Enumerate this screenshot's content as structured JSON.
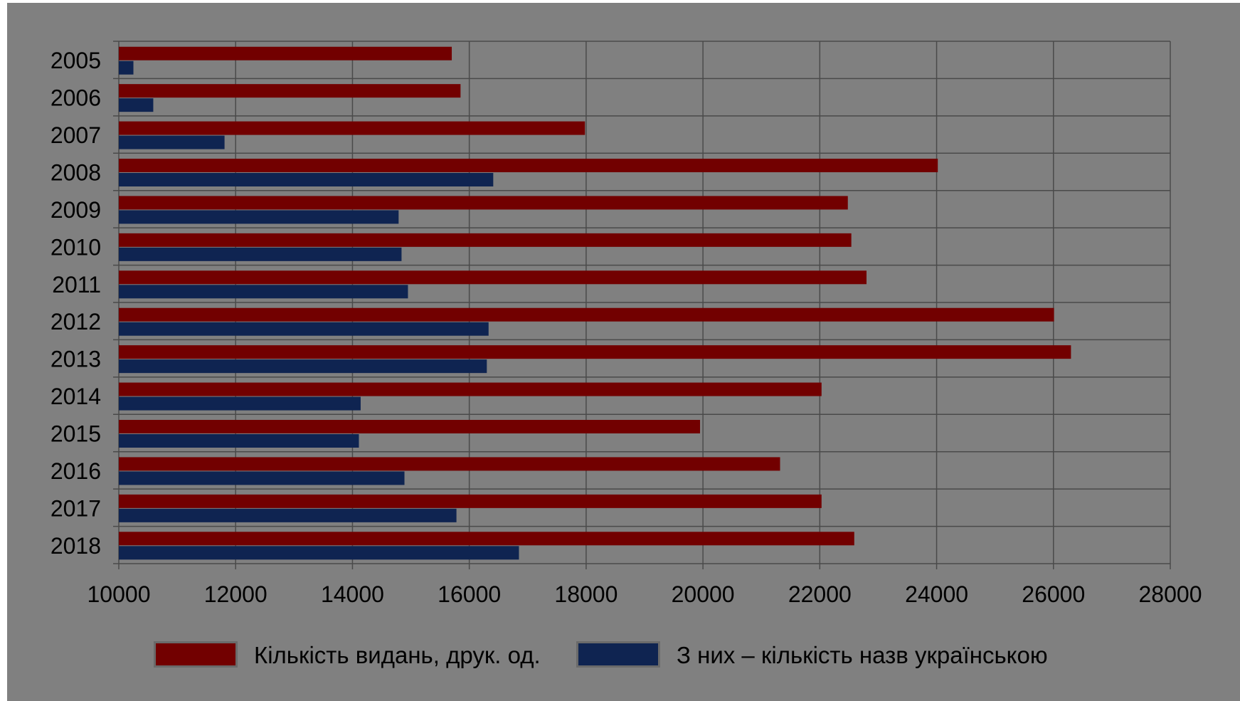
{
  "chart_data": {
    "type": "bar",
    "orientation": "horizontal",
    "title": "",
    "xlabel": "",
    "ylabel": "",
    "categories": [
      "2005",
      "2006",
      "2007",
      "2008",
      "2009",
      "2010",
      "2011",
      "2012",
      "2013",
      "2014",
      "2015",
      "2016",
      "2017",
      "2018"
    ],
    "series": [
      {
        "name": "Кількість видань, друк. од.",
        "color": "#720000",
        "values": [
          15700,
          15850,
          17980,
          24020,
          22480,
          22540,
          22800,
          26010,
          26300,
          22030,
          19950,
          21320,
          22030,
          22590
        ]
      },
      {
        "name": "З них – кількість назв українською",
        "color": "#0f2451",
        "values": [
          10250,
          10590,
          11810,
          16410,
          14790,
          14840,
          14950,
          16330,
          16300,
          14140,
          14110,
          14890,
          15780,
          16850
        ]
      }
    ],
    "xlim": [
      10000,
      28000
    ],
    "xticks": [
      "10000",
      "12000",
      "14000",
      "16000",
      "18000",
      "20000",
      "22000",
      "24000",
      "26000",
      "28000"
    ],
    "grid": true,
    "legend_position": "bottom",
    "background": "#808080",
    "grid_color": "#4a4a4a"
  }
}
